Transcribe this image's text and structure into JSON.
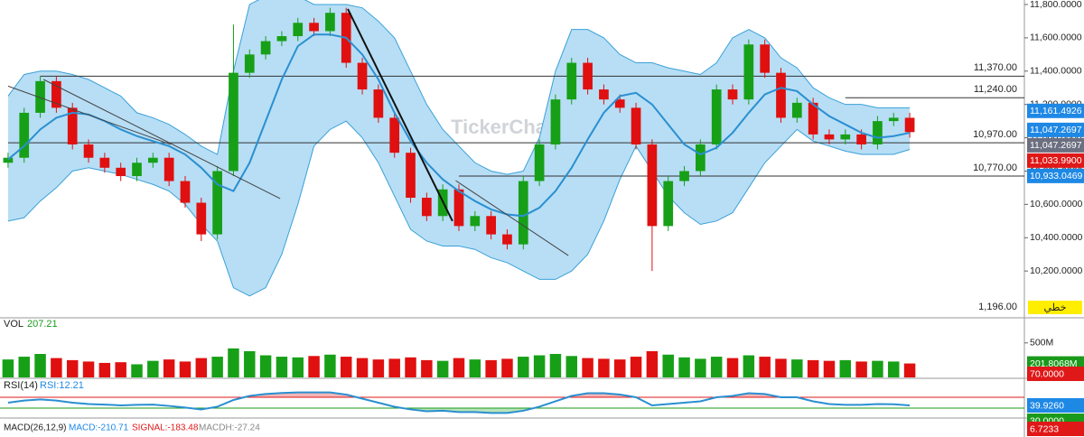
{
  "chart_data": {
    "type": "candlestick",
    "watermark": "TickerChart",
    "open": [
      10850,
      10880,
      11150,
      11340,
      11180,
      10960,
      10880,
      10820,
      10770,
      10850,
      10880,
      10740,
      10610,
      10420,
      10800,
      11390,
      11500,
      11580,
      11610,
      11690,
      11640,
      11750,
      11450,
      11290,
      11120,
      10910,
      10640,
      10530,
      10690,
      10470,
      10530,
      10420,
      10360,
      10740,
      10960,
      11230,
      11450,
      11290,
      11230,
      11180,
      10960,
      10470,
      10740,
      10800,
      10960,
      11290,
      11230,
      11560,
      11390,
      11120,
      11210,
      11020,
      10990,
      11020,
      10960,
      11100,
      11120
    ],
    "high": [
      10910,
      11180,
      11370,
      11370,
      11210,
      10990,
      10910,
      10850,
      10880,
      10910,
      10910,
      10770,
      10640,
      10830,
      11680,
      11530,
      11610,
      11640,
      11720,
      11720,
      11780,
      11780,
      11480,
      11320,
      11150,
      10940,
      10670,
      10720,
      10720,
      10560,
      10560,
      10450,
      10770,
      10990,
      11260,
      11480,
      11480,
      11320,
      11260,
      11210,
      10990,
      10770,
      10830,
      10990,
      11320,
      11320,
      11590,
      11590,
      11420,
      11240,
      11240,
      11050,
      11050,
      11050,
      11130,
      11150,
      11150
    ],
    "low": [
      10820,
      10850,
      11120,
      11150,
      10930,
      10850,
      10790,
      10740,
      10740,
      10820,
      10710,
      10580,
      10380,
      10390,
      10770,
      11360,
      11470,
      11550,
      11580,
      11610,
      11610,
      11420,
      11260,
      11090,
      10880,
      10610,
      10500,
      10500,
      10440,
      10440,
      10390,
      10330,
      10330,
      10710,
      10930,
      11200,
      11260,
      11200,
      11150,
      10930,
      10200,
      10440,
      10710,
      10770,
      10930,
      11200,
      11200,
      11360,
      11090,
      11090,
      10990,
      10960,
      10960,
      10930,
      10930,
      11070,
      11000
    ],
    "close": [
      10880,
      11150,
      11340,
      11180,
      10960,
      10880,
      10820,
      10770,
      10850,
      10880,
      10740,
      10610,
      10420,
      10800,
      11390,
      11500,
      11580,
      11610,
      11690,
      11640,
      11750,
      11450,
      11290,
      11120,
      10910,
      10640,
      10530,
      10690,
      10470,
      10530,
      10420,
      10360,
      10740,
      10960,
      11230,
      11450,
      11290,
      11230,
      11180,
      10960,
      10470,
      10740,
      10800,
      10960,
      11290,
      11230,
      11560,
      11390,
      11120,
      11210,
      11020,
      10990,
      11020,
      10960,
      11100,
      11120,
      11034
    ],
    "bands": {
      "upper": [
        11250,
        11380,
        11400,
        11400,
        11380,
        11350,
        11300,
        11250,
        11150,
        11120,
        11080,
        11020,
        10950,
        10900,
        11400,
        11800,
        11850,
        11850,
        11850,
        11800,
        11800,
        11800,
        11780,
        11700,
        11600,
        11400,
        11200,
        11050,
        10950,
        10850,
        10800,
        10780,
        10800,
        11000,
        11400,
        11650,
        11650,
        11600,
        11500,
        11450,
        11450,
        11420,
        11400,
        11380,
        11450,
        11600,
        11650,
        11600,
        11480,
        11420,
        11300,
        11240,
        11200,
        11200,
        11180,
        11180,
        11180
      ],
      "middle": [
        10870,
        10950,
        11050,
        11120,
        11150,
        11140,
        11100,
        11050,
        11010,
        10980,
        10950,
        10900,
        10820,
        10720,
        10680,
        10850,
        11100,
        11350,
        11550,
        11620,
        11620,
        11600,
        11500,
        11350,
        11150,
        10980,
        10850,
        10750,
        10680,
        10620,
        10570,
        10540,
        10530,
        10580,
        10680,
        10820,
        10990,
        11150,
        11250,
        11270,
        11200,
        11080,
        10960,
        10900,
        10940,
        11030,
        11150,
        11260,
        11300,
        11280,
        11200,
        11130,
        11080,
        11030,
        11000,
        11010,
        11030
      ],
      "lower": [
        10500,
        10520,
        10620,
        10700,
        10800,
        10820,
        10800,
        10780,
        10750,
        10720,
        10680,
        10600,
        10480,
        10380,
        10100,
        10050,
        10100,
        10300,
        10600,
        10950,
        11050,
        11100,
        11000,
        10850,
        10650,
        10450,
        10380,
        10350,
        10350,
        10330,
        10280,
        10250,
        10200,
        10150,
        10150,
        10200,
        10300,
        10500,
        10750,
        10950,
        10800,
        10650,
        10550,
        10480,
        10500,
        10550,
        10700,
        10850,
        10950,
        11050,
        10980,
        10950,
        10920,
        10900,
        10900,
        10900,
        10930
      ]
    },
    "ylim": [
      9930,
      11827
    ],
    "yticks": [
      {
        "value": 10200,
        "label": "10,200.0000"
      },
      {
        "value": 10400,
        "label": "10,400.0000"
      },
      {
        "value": 10600,
        "label": "10,600.0000"
      },
      {
        "value": 10800,
        "label": "10,800.0000"
      },
      {
        "value": 11000,
        "label": "11,000.0000"
      },
      {
        "value": 11200,
        "label": "11,200.0000"
      },
      {
        "value": 11400,
        "label": "11,400.0000"
      },
      {
        "value": 11600,
        "label": "11,600.0000"
      },
      {
        "value": 11800,
        "label": "11,800.0000"
      }
    ],
    "levels": [
      {
        "x": 2,
        "value": 11370,
        "label": "11,370.00"
      },
      {
        "x": 52,
        "value": 11240,
        "label": "11,240.00"
      },
      {
        "x": 0,
        "value": 10970,
        "label": "10,970.00"
      },
      {
        "x": 28,
        "value": 10770,
        "label": "10,770.00"
      }
    ],
    "trendlines": [
      {
        "x": [
          0.5,
          10.6
        ],
        "y": [
          11310,
          10960
        ]
      },
      {
        "x": [
          2.7,
          17.4
        ],
        "y": [
          11350,
          10635
        ]
      },
      {
        "x": [
          21.6,
          28.1
        ],
        "y": [
          11773,
          10500
        ]
      },
      {
        "x": [
          28.3,
          35.3
        ],
        "y": [
          10743,
          10293
        ]
      }
    ],
    "annotation": "1,196.00",
    "chart_style": "خطي",
    "price_tags": [
      {
        "value": 11161.4926,
        "label": "11,161.4926",
        "color": "#1e88e5"
      },
      {
        "value": 11047.2697,
        "label": "11,047.2697",
        "color": "#1e88e5"
      },
      {
        "value": 11047.2697,
        "label": "11,047.2697",
        "color": "#6b6f80"
      },
      {
        "value": 11033.99,
        "label": "11,033.9900",
        "color": "#e01818"
      },
      {
        "value": 10933.0469,
        "label": "10,933.0469",
        "color": "#1e88e5"
      }
    ],
    "volume": {
      "title": "VOL",
      "reading": "207.21",
      "values": [
        260,
        300,
        340,
        280,
        250,
        230,
        210,
        220,
        190,
        240,
        260,
        230,
        280,
        300,
        420,
        380,
        320,
        300,
        290,
        310,
        330,
        300,
        280,
        260,
        270,
        290,
        250,
        240,
        280,
        260,
        250,
        270,
        300,
        320,
        340,
        310,
        280,
        270,
        260,
        300,
        380,
        330,
        290,
        270,
        300,
        280,
        320,
        300,
        270,
        260,
        250,
        240,
        250,
        230,
        240,
        230,
        201.8068
      ],
      "ylim": [
        0,
        850
      ],
      "yticks": [
        {
          "value": 500,
          "label": "500M"
        }
      ],
      "tags": [
        {
          "value": 201.8068,
          "label": "201.8068M",
          "color": "#1a9a1a"
        }
      ]
    },
    "rsi": {
      "title": "RSI(14)",
      "reading": "RSI:12.21",
      "values": [
        50,
        58,
        62,
        58,
        50,
        45,
        43,
        40,
        42,
        43,
        38,
        32,
        25,
        35,
        60,
        75,
        82,
        86,
        88,
        88,
        88,
        80,
        65,
        50,
        35,
        25,
        18,
        20,
        15,
        15,
        12,
        12,
        20,
        35,
        55,
        75,
        85,
        85,
        80,
        70,
        40,
        45,
        50,
        55,
        70,
        75,
        85,
        82,
        70,
        70,
        55,
        45,
        42,
        42,
        45,
        44,
        40
      ],
      "ylim": [
        -7,
        137
      ],
      "levels": [
        70,
        30
      ],
      "tags": [
        {
          "value": 39.926,
          "label": "39.9260",
          "color": "#1e88e5"
        },
        {
          "value": 30,
          "label": "30.0000",
          "color": "#1a9a1a"
        }
      ],
      "level_tags": [
        {
          "value": 70,
          "label": "70.0000",
          "color": "#e01818"
        }
      ]
    },
    "macd": {
      "title": "MACD(26,12,9)",
      "macd": "MACD:-210.71",
      "signal": "SIGNAL:-183.48",
      "hist": "MACDH:-27.24",
      "tags": [
        {
          "value": 6.7233,
          "label": "6.7233",
          "color": "#e01818"
        }
      ]
    }
  }
}
